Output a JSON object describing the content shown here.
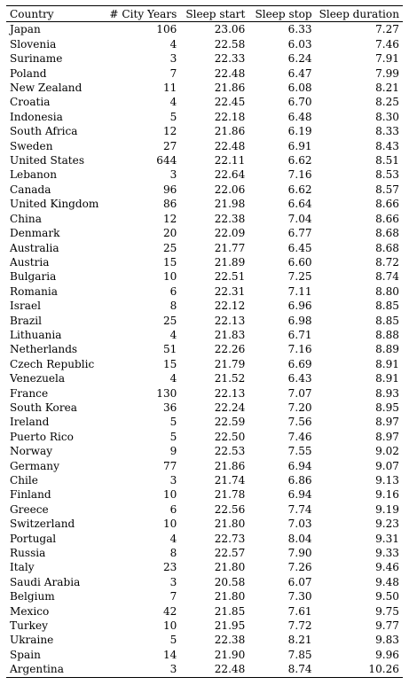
{
  "table": {
    "headers": {
      "country": "Country",
      "city_years": "# City Years",
      "sleep_start": "Sleep start",
      "sleep_stop": "Sleep stop",
      "sleep_duration": "Sleep duration"
    },
    "rows": [
      [
        "Japan",
        "106",
        "23.06",
        "6.33",
        "7.27"
      ],
      [
        "Slovenia",
        "4",
        "22.58",
        "6.03",
        "7.46"
      ],
      [
        "Suriname",
        "3",
        "22.33",
        "6.24",
        "7.91"
      ],
      [
        "Poland",
        "7",
        "22.48",
        "6.47",
        "7.99"
      ],
      [
        "New Zealand",
        "11",
        "21.86",
        "6.08",
        "8.21"
      ],
      [
        "Croatia",
        "4",
        "22.45",
        "6.70",
        "8.25"
      ],
      [
        "Indonesia",
        "5",
        "22.18",
        "6.48",
        "8.30"
      ],
      [
        "South Africa",
        "12",
        "21.86",
        "6.19",
        "8.33"
      ],
      [
        "Sweden",
        "27",
        "22.48",
        "6.91",
        "8.43"
      ],
      [
        "United States",
        "644",
        "22.11",
        "6.62",
        "8.51"
      ],
      [
        "Lebanon",
        "3",
        "22.64",
        "7.16",
        "8.53"
      ],
      [
        "Canada",
        "96",
        "22.06",
        "6.62",
        "8.57"
      ],
      [
        "United Kingdom",
        "86",
        "21.98",
        "6.64",
        "8.66"
      ],
      [
        "China",
        "12",
        "22.38",
        "7.04",
        "8.66"
      ],
      [
        "Denmark",
        "20",
        "22.09",
        "6.77",
        "8.68"
      ],
      [
        "Australia",
        "25",
        "21.77",
        "6.45",
        "8.68"
      ],
      [
        "Austria",
        "15",
        "21.89",
        "6.60",
        "8.72"
      ],
      [
        "Bulgaria",
        "10",
        "22.51",
        "7.25",
        "8.74"
      ],
      [
        "Romania",
        "6",
        "22.31",
        "7.11",
        "8.80"
      ],
      [
        "Israel",
        "8",
        "22.12",
        "6.96",
        "8.85"
      ],
      [
        "Brazil",
        "25",
        "22.13",
        "6.98",
        "8.85"
      ],
      [
        "Lithuania",
        "4",
        "21.83",
        "6.71",
        "8.88"
      ],
      [
        "Netherlands",
        "51",
        "22.26",
        "7.16",
        "8.89"
      ],
      [
        "Czech Republic",
        "15",
        "21.79",
        "6.69",
        "8.91"
      ],
      [
        "Venezuela",
        "4",
        "21.52",
        "6.43",
        "8.91"
      ],
      [
        "France",
        "130",
        "22.13",
        "7.07",
        "8.93"
      ],
      [
        "South Korea",
        "36",
        "22.24",
        "7.20",
        "8.95"
      ],
      [
        "Ireland",
        "5",
        "22.59",
        "7.56",
        "8.97"
      ],
      [
        "Puerto Rico",
        "5",
        "22.50",
        "7.46",
        "8.97"
      ],
      [
        "Norway",
        "9",
        "22.53",
        "7.55",
        "9.02"
      ],
      [
        "Germany",
        "77",
        "21.86",
        "6.94",
        "9.07"
      ],
      [
        "Chile",
        "3",
        "21.74",
        "6.86",
        "9.13"
      ],
      [
        "Finland",
        "10",
        "21.78",
        "6.94",
        "9.16"
      ],
      [
        "Greece",
        "6",
        "22.56",
        "7.74",
        "9.19"
      ],
      [
        "Switzerland",
        "10",
        "21.80",
        "7.03",
        "9.23"
      ],
      [
        "Portugal",
        "4",
        "22.73",
        "8.04",
        "9.31"
      ],
      [
        "Russia",
        "8",
        "22.57",
        "7.90",
        "9.33"
      ],
      [
        "Italy",
        "23",
        "21.80",
        "7.26",
        "9.46"
      ],
      [
        "Saudi Arabia",
        "3",
        "20.58",
        "6.07",
        "9.48"
      ],
      [
        "Belgium",
        "7",
        "21.80",
        "7.30",
        "9.50"
      ],
      [
        "Mexico",
        "42",
        "21.85",
        "7.61",
        "9.75"
      ],
      [
        "Turkey",
        "10",
        "21.95",
        "7.72",
        "9.77"
      ],
      [
        "Ukraine",
        "5",
        "22.38",
        "8.21",
        "9.83"
      ],
      [
        "Spain",
        "14",
        "21.90",
        "7.85",
        "9.96"
      ],
      [
        "Argentina",
        "3",
        "22.48",
        "8.74",
        "10.26"
      ]
    ]
  }
}
